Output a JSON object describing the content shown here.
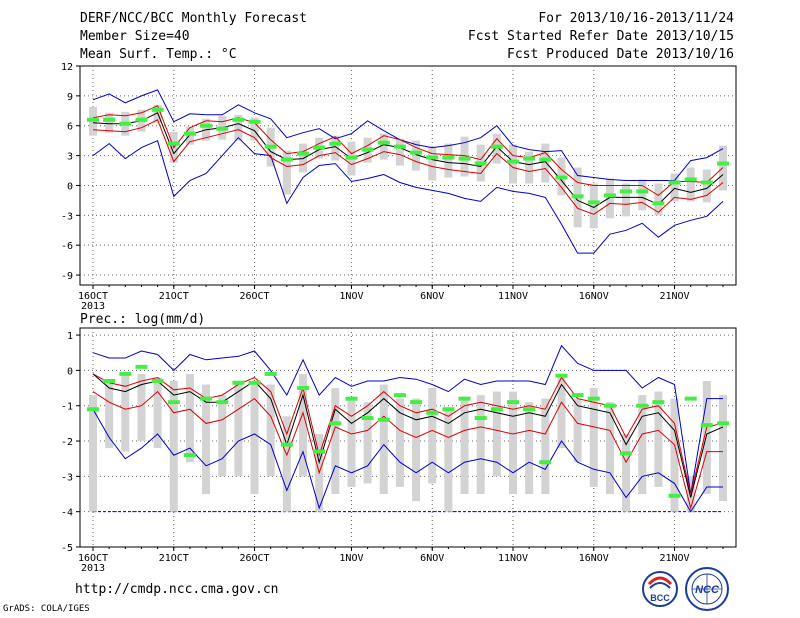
{
  "header": {
    "title": "DERF/NCC/BCC Monthly Forecast",
    "member_size": "Member Size=40",
    "variable": "Mean Surf. Temp.: °C",
    "period": "For 2013/10/16-2013/11/24",
    "start_date": "Fcst Started Refer Date 2013/10/15",
    "produced_date": "Fcst Produced Date 2013/10/16"
  },
  "footer": {
    "url": "http://cmdp.ncc.cma.gov.cn",
    "credit": "GrADS: COLA/IGES",
    "logo_left_text": "BCC",
    "logo_right_text": "NCC"
  },
  "colors": {
    "max_min": "#0000cc",
    "band": "#dd0000",
    "mean": "#000000",
    "box": "#d3d3d3",
    "marker": "#44ee44",
    "grid": "#666666"
  },
  "chart_data": [
    {
      "type": "box-line",
      "title": "",
      "ylabel": "Mean Surf. Temp.: °C",
      "ylim": [
        -10,
        12
      ],
      "yticks": [
        -9,
        -6,
        -3,
        0,
        3,
        6,
        9,
        12
      ],
      "x_start": 16,
      "x_ticks": [
        {
          "day": 16,
          "label": "16OCT",
          "sublabel": "2013"
        },
        {
          "day": 21,
          "label": "21OCT"
        },
        {
          "day": 26,
          "label": "26OCT"
        },
        {
          "day": 32,
          "label": "1NOV"
        },
        {
          "day": 37,
          "label": "6NOV"
        },
        {
          "day": 42,
          "label": "11NOV"
        },
        {
          "day": 47,
          "label": "16NOV"
        },
        {
          "day": 52,
          "label": "21NOV"
        }
      ],
      "series": {
        "max": [
          8.6,
          9.2,
          8.3,
          9.0,
          9.6,
          6.4,
          7.2,
          7.1,
          7.1,
          8.1,
          7.3,
          6.7,
          4.8,
          5.3,
          5.7,
          4.7,
          5.2,
          6.5,
          5.5,
          4.6,
          4.1,
          3.8,
          4.0,
          4.3,
          4.8,
          6.0,
          4.0,
          3.6,
          3.4,
          3.5,
          1.0,
          0.8,
          0.6,
          0.5,
          0.5,
          0.5,
          0.5,
          2.5,
          2.8,
          3.7
        ],
        "band_high": [
          6.8,
          7.1,
          7.0,
          7.3,
          8.0,
          3.8,
          5.8,
          6.5,
          6.4,
          6.8,
          6.3,
          4.6,
          3.2,
          3.4,
          4.2,
          4.9,
          3.2,
          4.0,
          5.0,
          4.6,
          3.8,
          3.2,
          3.1,
          3.0,
          2.6,
          4.7,
          3.0,
          2.8,
          3.3,
          1.6,
          0.3,
          0.0,
          0.0,
          0.0,
          0.0,
          -1.0,
          0.4,
          0.4,
          0.3,
          1.8
        ],
        "mean": [
          6.3,
          6.2,
          6.2,
          6.5,
          7.3,
          3.2,
          5.1,
          5.6,
          5.8,
          6.2,
          5.5,
          3.4,
          2.6,
          2.7,
          3.6,
          3.9,
          2.7,
          3.3,
          4.1,
          3.8,
          3.1,
          2.6,
          2.3,
          2.2,
          1.9,
          3.9,
          2.4,
          2.1,
          2.4,
          0.5,
          -1.5,
          -2.2,
          -1.2,
          -1.2,
          -1.2,
          -1.9,
          -0.3,
          -0.7,
          -0.3,
          1.1
        ],
        "band_low": [
          5.6,
          5.5,
          5.4,
          5.8,
          6.6,
          2.4,
          4.4,
          4.8,
          5.2,
          5.6,
          4.8,
          2.8,
          1.9,
          2.1,
          3.0,
          3.3,
          2.1,
          2.7,
          3.4,
          3.1,
          2.4,
          1.9,
          1.6,
          1.4,
          1.2,
          3.2,
          1.8,
          1.4,
          1.7,
          -0.2,
          -2.3,
          -2.9,
          -1.8,
          -1.9,
          -1.7,
          -2.7,
          -1.2,
          -1.4,
          -1.0,
          0.3
        ],
        "min": [
          3.0,
          4.2,
          2.7,
          3.8,
          4.5,
          -1.1,
          0.5,
          1.2,
          3.0,
          4.8,
          3.2,
          3.0,
          -1.8,
          0.8,
          2.0,
          2.2,
          0.4,
          0.7,
          1.1,
          0.3,
          -0.2,
          -0.5,
          -0.8,
          -1.3,
          -1.6,
          -0.2,
          -0.6,
          -0.8,
          -1.2,
          -3.9,
          -6.8,
          -6.8,
          -4.9,
          -4.5,
          -3.8,
          -5.2,
          -4.0,
          -3.5,
          -3.1,
          -1.6
        ],
        "box_top": [
          7.9,
          7.3,
          7.4,
          7.6,
          8.1,
          5.4,
          5.9,
          6.7,
          7.0,
          7.1,
          6.8,
          5.8,
          3.5,
          4.2,
          4.8,
          5.0,
          4.4,
          4.8,
          5.2,
          4.7,
          4.5,
          3.9,
          4.2,
          4.9,
          4.1,
          5.2,
          4.1,
          3.4,
          4.2,
          2.8,
          1.8,
          0.2,
          0.7,
          0.2,
          0.6,
          0.2,
          1.2,
          1.8,
          1.6,
          4.0
        ],
        "box_bottom": [
          5.0,
          5.3,
          5.0,
          5.4,
          6.3,
          2.3,
          4.1,
          4.5,
          4.6,
          4.5,
          4.5,
          1.9,
          -0.9,
          1.3,
          2.7,
          2.5,
          1.0,
          2.3,
          2.6,
          2.0,
          1.5,
          0.5,
          0.8,
          0.9,
          0.4,
          2.2,
          0.2,
          0.2,
          0.3,
          -1.0,
          -4.2,
          -4.3,
          -3.3,
          -3.1,
          -2.5,
          -3.0,
          -1.6,
          -1.6,
          -1.7,
          -0.5
        ],
        "marker": [
          6.6,
          6.6,
          6.2,
          6.6,
          7.6,
          4.2,
          5.2,
          6.0,
          5.7,
          6.6,
          6.4,
          3.9,
          2.6,
          3.2,
          3.8,
          4.2,
          2.8,
          3.6,
          4.3,
          3.9,
          3.3,
          2.8,
          2.8,
          2.7,
          2.2,
          3.9,
          2.4,
          2.7,
          2.6,
          0.8,
          -1.1,
          -1.7,
          -1.0,
          -0.6,
          -0.6,
          -1.8,
          0.3,
          0.6,
          0.3,
          2.2
        ]
      }
    },
    {
      "type": "box-line",
      "title": "Prec.: log(mm/d)",
      "ylabel": "Prec.: log(mm/d)",
      "ylim": [
        -5,
        1.2
      ],
      "yticks": [
        -5,
        -4,
        -3,
        -2,
        -1,
        0,
        1
      ],
      "x_start": 16,
      "x_ticks": [
        {
          "day": 16,
          "label": "16OCT",
          "sublabel": "2013"
        },
        {
          "day": 21,
          "label": "21OCT"
        },
        {
          "day": 26,
          "label": "26OCT"
        },
        {
          "day": 32,
          "label": "1NOV"
        },
        {
          "day": 37,
          "label": "6NOV"
        },
        {
          "day": 42,
          "label": "11NOV"
        },
        {
          "day": 47,
          "label": "16NOV"
        },
        {
          "day": 52,
          "label": "21NOV"
        }
      ],
      "baseline": -4,
      "series": {
        "max": [
          0.5,
          0.35,
          0.35,
          0.55,
          0.45,
          0.0,
          0.45,
          0.3,
          0.35,
          0.4,
          0.55,
          0.0,
          -0.7,
          0.3,
          -0.7,
          -0.2,
          -0.45,
          -0.3,
          -0.3,
          -0.2,
          -0.25,
          -0.4,
          -0.6,
          -0.25,
          -0.4,
          -0.3,
          -0.3,
          -0.3,
          -0.4,
          0.7,
          0.2,
          0.0,
          0.0,
          0.0,
          -0.5,
          -0.2,
          -0.4,
          -3.5,
          -0.8,
          -0.8
        ],
        "band_high": [
          -0.1,
          -0.35,
          -0.45,
          -0.3,
          -0.2,
          -0.55,
          -0.5,
          -0.8,
          -0.7,
          -0.4,
          -0.2,
          -0.6,
          -1.8,
          -0.5,
          -2.4,
          -1.0,
          -1.3,
          -1.0,
          -0.6,
          -1.0,
          -1.2,
          -1.1,
          -1.3,
          -1.0,
          -0.9,
          -1.0,
          -1.1,
          -1.0,
          -1.1,
          -0.2,
          -0.8,
          -0.9,
          -1.0,
          -1.9,
          -1.1,
          -1.0,
          -1.5,
          -3.5,
          -1.6,
          -1.5
        ],
        "mean": [
          -0.1,
          -0.5,
          -0.6,
          -0.4,
          -0.3,
          -0.7,
          -0.6,
          -0.9,
          -0.9,
          -0.6,
          -0.3,
          -0.8,
          -2.1,
          -0.7,
          -2.6,
          -1.1,
          -1.5,
          -1.2,
          -0.8,
          -1.2,
          -1.4,
          -1.3,
          -1.5,
          -1.2,
          -1.1,
          -1.2,
          -1.3,
          -1.2,
          -1.3,
          -0.4,
          -1.0,
          -1.1,
          -1.2,
          -2.1,
          -1.3,
          -1.2,
          -1.7,
          -3.6,
          -1.8,
          -1.6
        ],
        "band_low": [
          -0.6,
          -0.9,
          -1.1,
          -1.0,
          -0.6,
          -1.2,
          -1.1,
          -1.5,
          -1.4,
          -1.1,
          -0.8,
          -1.3,
          -2.4,
          -1.2,
          -2.9,
          -1.6,
          -1.8,
          -1.7,
          -1.3,
          -1.7,
          -1.9,
          -1.7,
          -1.9,
          -1.7,
          -1.6,
          -1.7,
          -1.8,
          -1.7,
          -1.8,
          -0.9,
          -1.5,
          -1.6,
          -1.7,
          -2.6,
          -1.8,
          -1.7,
          -2.1,
          -3.9,
          -2.3,
          -2.3
        ],
        "min": [
          -1.1,
          -1.9,
          -2.5,
          -2.2,
          -1.8,
          -2.4,
          -2.2,
          -2.7,
          -2.5,
          -2.0,
          -1.8,
          -2.1,
          -3.4,
          -2.3,
          -3.9,
          -2.7,
          -2.9,
          -2.7,
          -2.1,
          -2.6,
          -2.9,
          -2.6,
          -2.9,
          -2.6,
          -2.5,
          -2.6,
          -2.9,
          -2.6,
          -2.8,
          -2.0,
          -2.6,
          -2.8,
          -2.9,
          -3.6,
          -3.0,
          -2.9,
          -3.2,
          -4.0,
          -3.3,
          -3.3
        ],
        "box_top": [
          -0.7,
          -0.3,
          -0.1,
          -0.1,
          -0.2,
          -0.3,
          -0.1,
          -0.4,
          -0.7,
          -0.3,
          -0.4,
          -0.4,
          -1.3,
          -0.1,
          -1.8,
          -0.5,
          -0.8,
          -0.9,
          -0.4,
          -0.8,
          -0.8,
          -0.5,
          -1.1,
          -0.8,
          -0.7,
          -0.6,
          -0.6,
          -0.9,
          -0.8,
          -0.2,
          -0.8,
          -0.5,
          -0.9,
          -1.8,
          -0.7,
          -0.6,
          -0.8,
          -3.0,
          -0.3,
          -0.7
        ],
        "box_bottom": [
          -4.0,
          -2.2,
          -2.3,
          -2.0,
          -2.2,
          -4.0,
          -2.6,
          -3.5,
          -3.0,
          -3.0,
          -3.5,
          -3.0,
          -4.0,
          -3.0,
          -4.0,
          -3.5,
          -3.3,
          -3.2,
          -3.5,
          -3.3,
          -3.7,
          -3.2,
          -4.0,
          -3.5,
          -3.5,
          -3.0,
          -3.5,
          -3.5,
          -3.5,
          -2.2,
          -2.6,
          -3.3,
          -3.5,
          -4.0,
          -3.5,
          -3.3,
          -4.0,
          -4.0,
          -3.5,
          -3.7
        ],
        "marker": [
          -1.1,
          -0.3,
          -0.1,
          0.1,
          -0.3,
          -0.9,
          -2.4,
          -0.8,
          -0.9,
          -0.35,
          -0.35,
          -0.1,
          -2.1,
          -0.5,
          -2.3,
          -1.5,
          -0.8,
          -1.35,
          -1.4,
          -0.7,
          -0.9,
          -1.2,
          -1.1,
          -0.8,
          -1.35,
          -1.1,
          -0.9,
          -1.1,
          -2.6,
          -0.15,
          -0.7,
          -0.8,
          -1.0,
          -2.35,
          -1.0,
          -0.9,
          -3.55,
          -0.8,
          -1.55,
          -1.5
        ]
      }
    }
  ]
}
